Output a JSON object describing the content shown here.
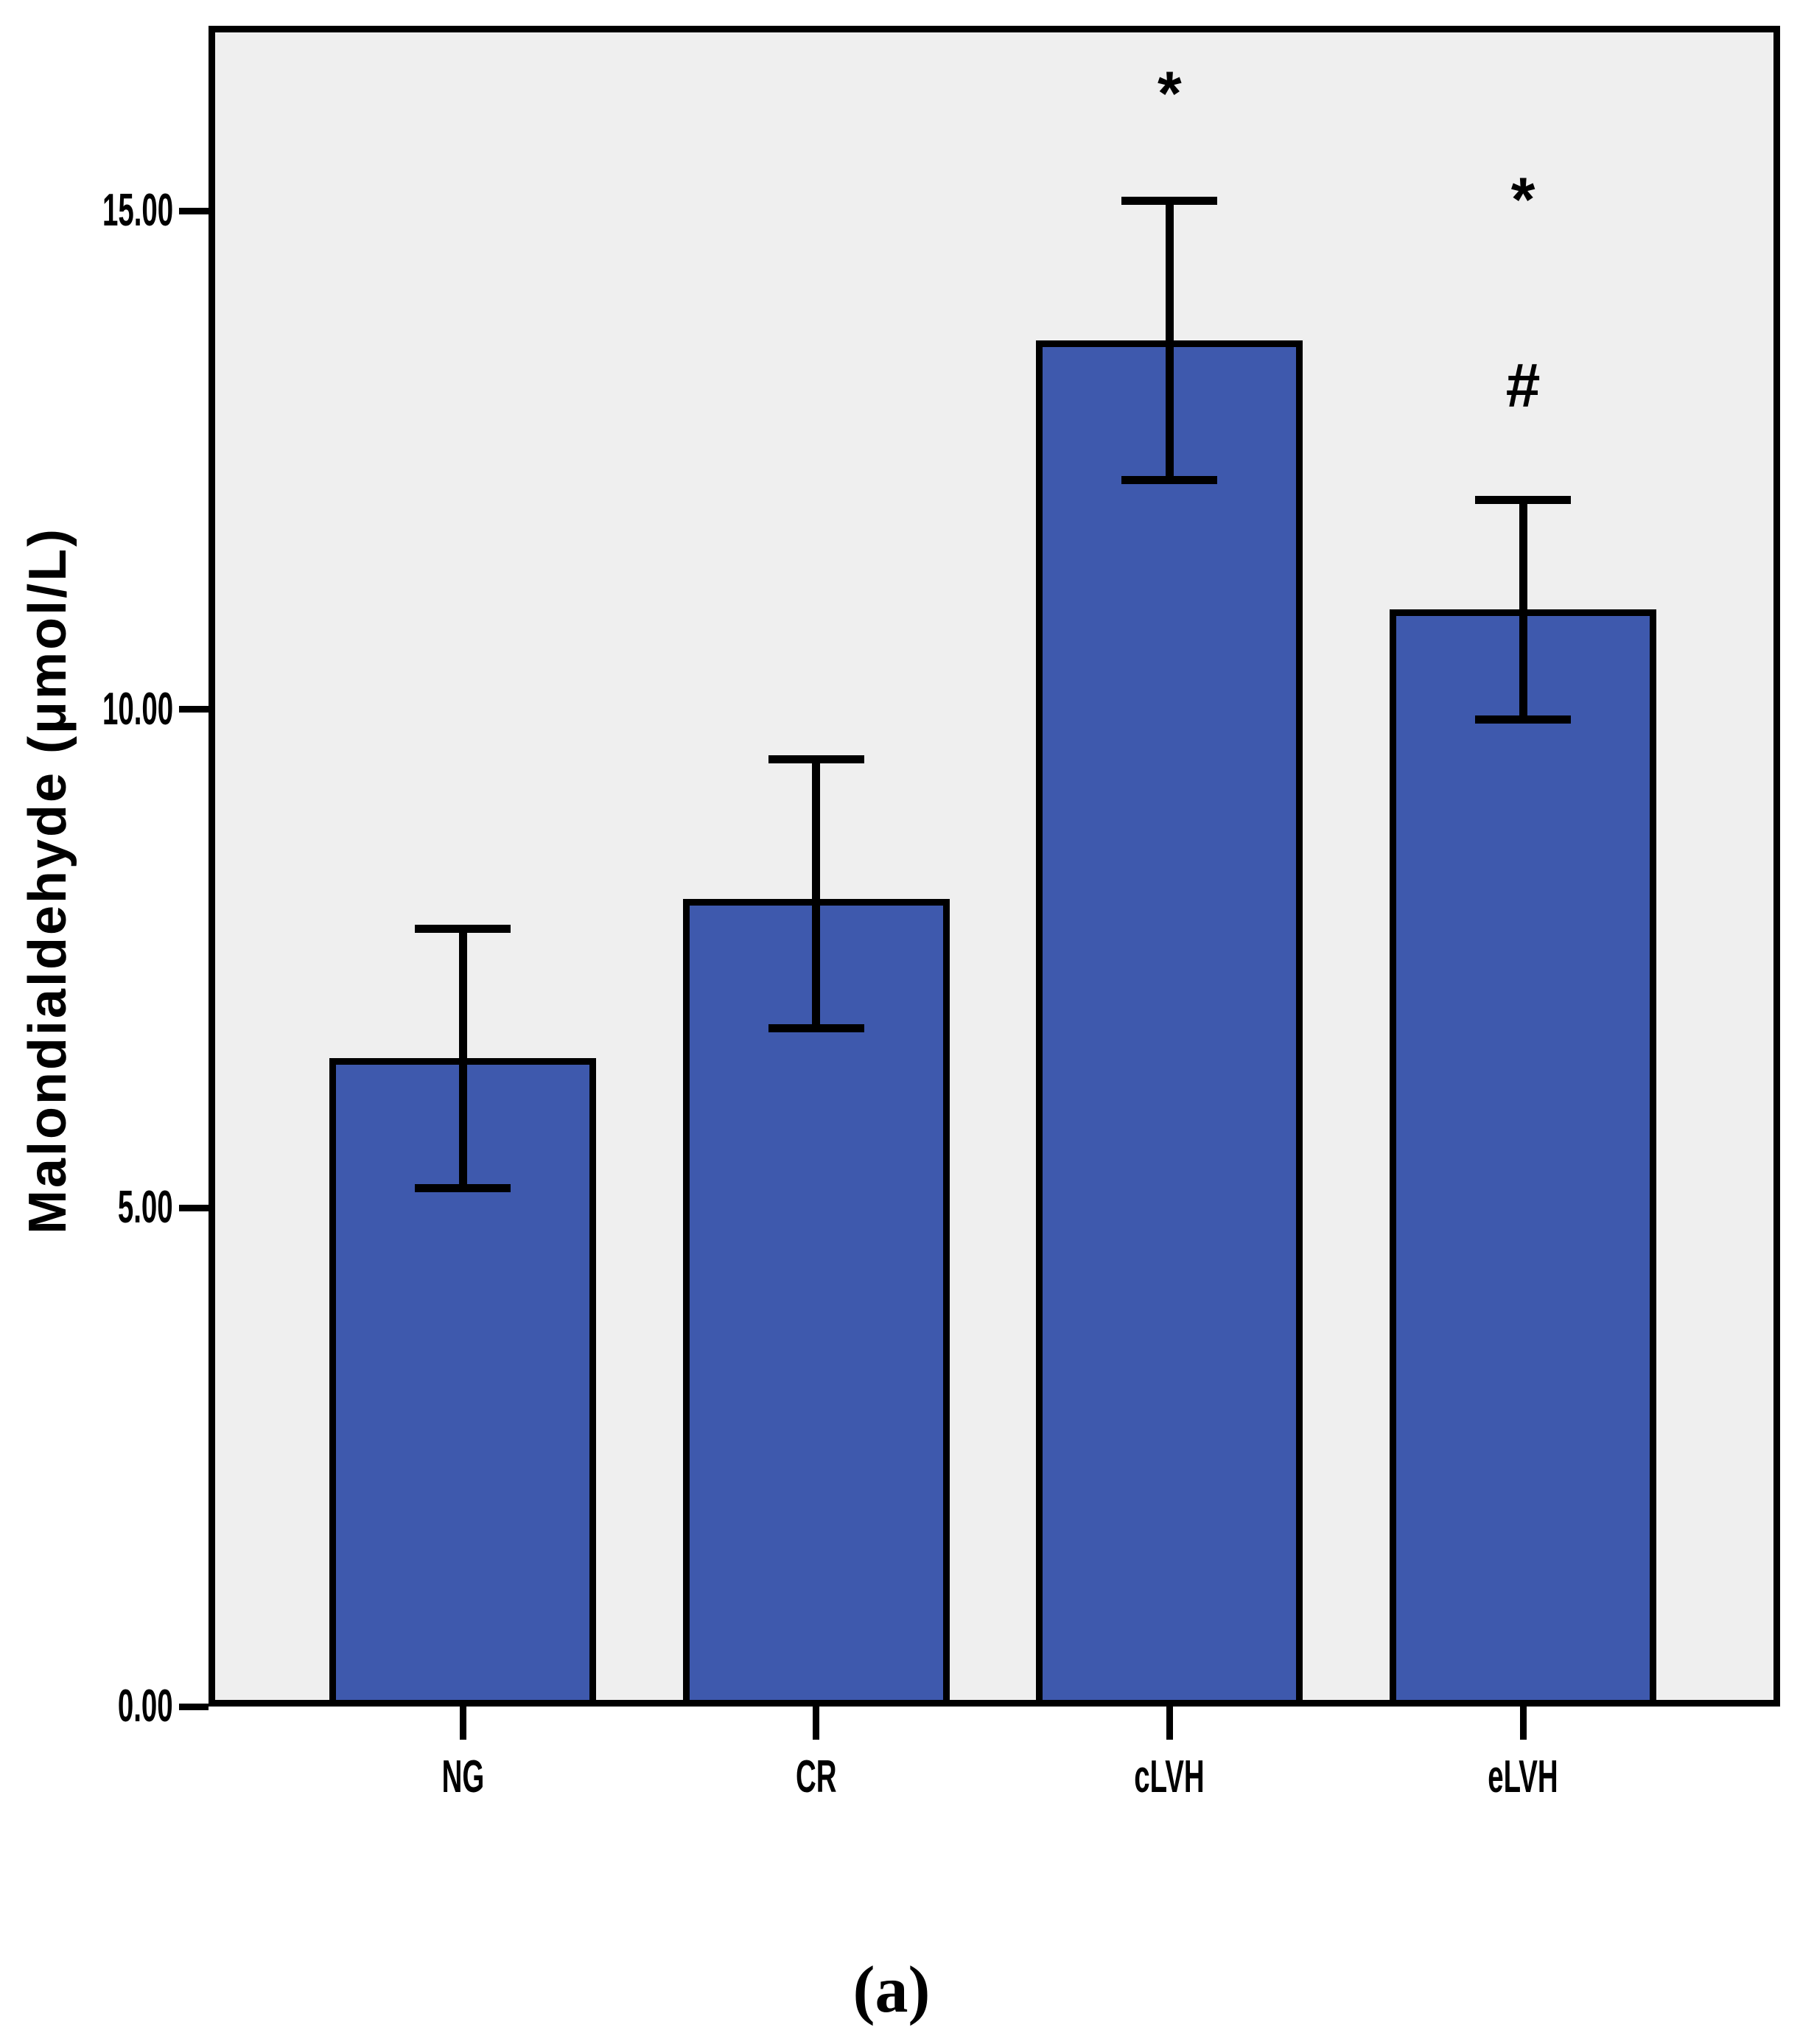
{
  "figure": {
    "caption": "(a)"
  },
  "chart_data": {
    "type": "bar",
    "title": "",
    "xlabel": "",
    "ylabel": "Malondialdehyde (μmol/L)",
    "categories": [
      "NG",
      "CR",
      "cLVH",
      "eLVH"
    ],
    "values": [
      6.5,
      8.1,
      13.7,
      11.0
    ],
    "error_high": [
      7.8,
      9.5,
      15.1,
      12.1
    ],
    "error_low": [
      5.2,
      6.8,
      12.3,
      9.9
    ],
    "annotations": [
      [],
      [],
      [
        "*"
      ],
      [
        "*",
        "#"
      ]
    ],
    "yticks": [
      {
        "value": 0,
        "label": "0.00"
      },
      {
        "value": 5,
        "label": "5.00"
      },
      {
        "value": 10,
        "label": "10.00"
      },
      {
        "value": 15,
        "label": "15.00"
      }
    ],
    "ylim": [
      0,
      16.9
    ],
    "grid": false,
    "legend": null,
    "bar_color": "#3E59AD",
    "plot_background": "#EFEFEF",
    "line_color": "#000000"
  }
}
